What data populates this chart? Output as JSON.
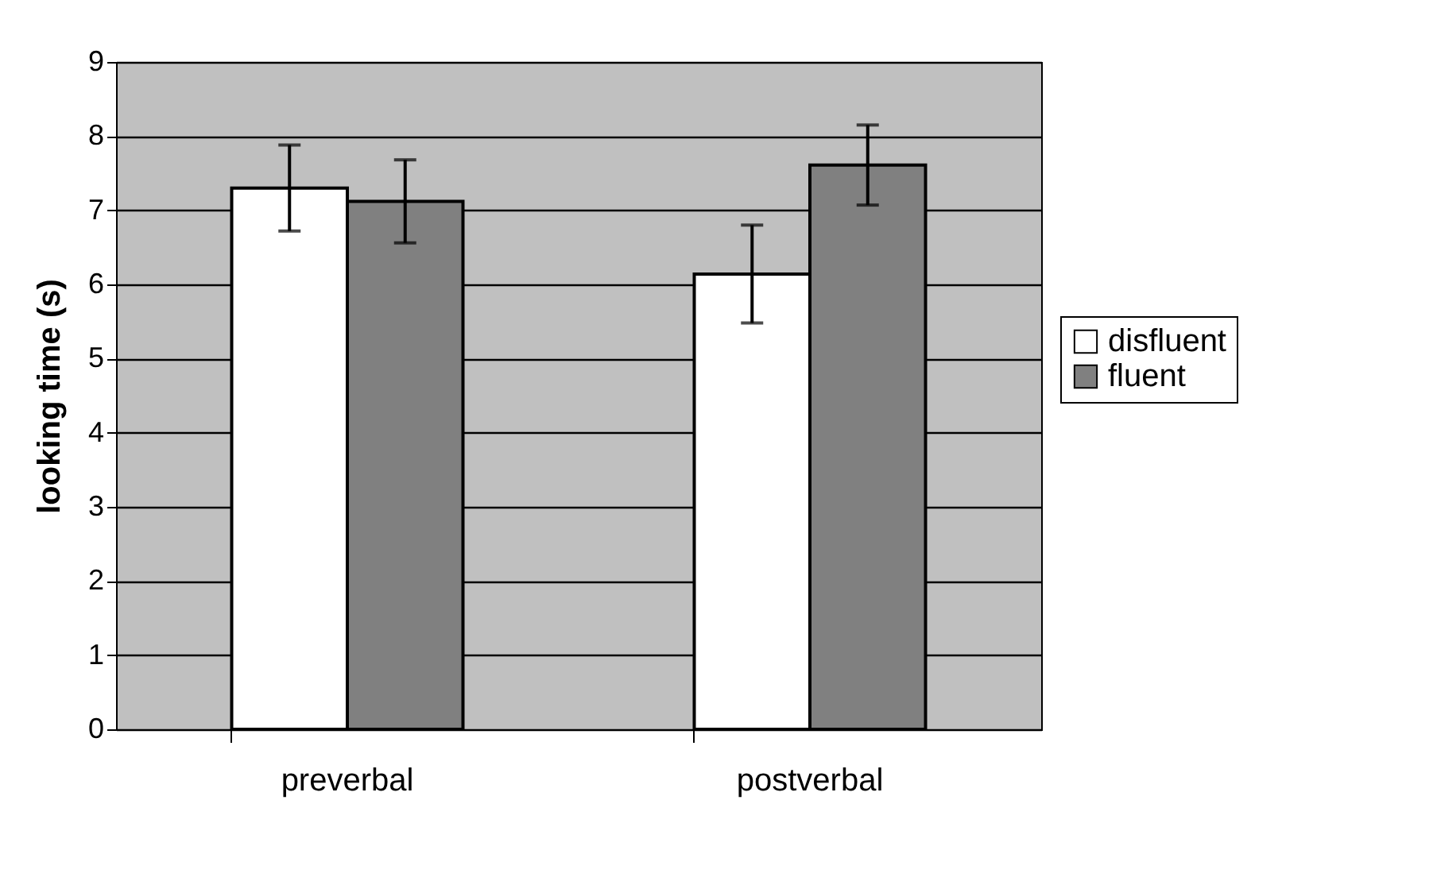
{
  "chart_data": {
    "type": "bar",
    "ylabel": "looking time (s)",
    "categories": [
      "preverbal",
      "postverbal"
    ],
    "series": [
      {
        "name": "disfluent",
        "color": "#ffffff",
        "values": [
          7.3,
          6.14
        ],
        "errors": [
          0.58,
          0.66
        ]
      },
      {
        "name": "fluent",
        "color": "#808080",
        "values": [
          7.12,
          7.61
        ],
        "errors": [
          0.56,
          0.54
        ]
      }
    ],
    "ylim": [
      0,
      9
    ],
    "yticks": [
      0,
      1,
      2,
      3,
      4,
      5,
      6,
      7,
      8,
      9
    ],
    "grid": "y",
    "legend": "right"
  }
}
